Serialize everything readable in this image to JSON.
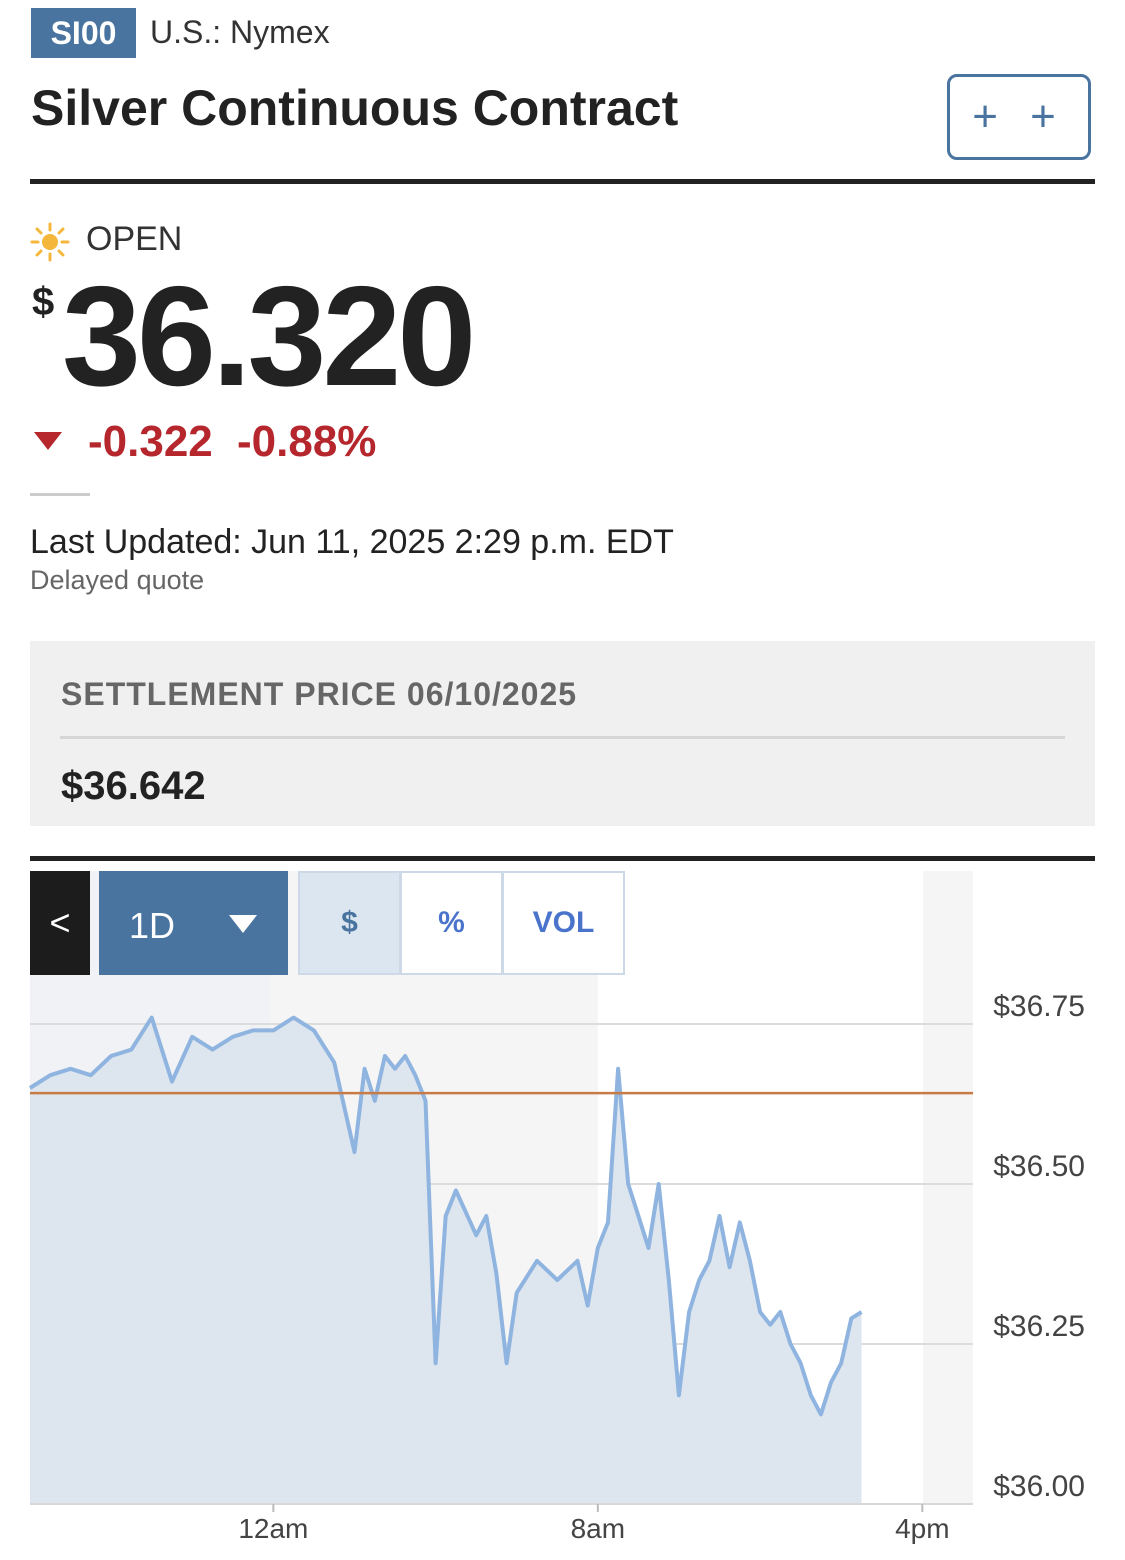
{
  "header": {
    "ticker": "SI00",
    "exchange": "U.S.: Nymex",
    "title": "Silver Continuous Contract",
    "watchlist_label": "+ +"
  },
  "quote": {
    "status": "OPEN",
    "currency_symbol": "$",
    "price": "36.320",
    "change": "-0.322",
    "change_percent": "-0.88%",
    "last_updated": "Last Updated: Jun 11, 2025 2:29 p.m. EDT",
    "delayed": "Delayed quote"
  },
  "settlement": {
    "label": "SETTLEMENT PRICE 06/10/2025",
    "value": "$36.642"
  },
  "chart_controls": {
    "back_label": "<",
    "range_label": "1D",
    "segments": [
      "$",
      "%",
      "VOL"
    ],
    "active_segment": "$"
  },
  "colors": {
    "accent": "#4a74a0",
    "down": "#b5272d",
    "line": "#8fb4e0",
    "fill": "#dde6ef",
    "reference": "#c97b45"
  },
  "chart_data": {
    "type": "area",
    "y_ticks": [
      "$36.75",
      "$36.50",
      "$36.25",
      "$36.00"
    ],
    "y_tick_values": [
      36.75,
      36.5,
      36.25,
      36.0
    ],
    "ylim": [
      36.0,
      36.75
    ],
    "x_ticks": [
      "12am",
      "8am",
      "4pm"
    ],
    "x_tick_hours": [
      0,
      8,
      16
    ],
    "xlim_hours": [
      -6,
      17.25
    ],
    "reference_line": 36.642,
    "grid": true,
    "series": [
      {
        "x_hours": [
          -6,
          -5.5,
          -5,
          -4.5,
          -4,
          -3.5,
          -3,
          -2.5,
          -2,
          -1.5,
          -1,
          -0.5,
          0,
          0.5,
          1,
          1.5,
          1.75,
          2,
          2.25,
          2.5,
          2.75,
          3,
          3.25,
          3.5,
          3.75,
          4,
          4.25,
          4.5,
          5,
          5.25,
          5.5,
          5.75,
          6,
          6.5,
          7,
          7.5,
          7.75,
          8,
          8.25,
          8.5,
          8.75,
          9,
          9.25,
          9.5,
          9.75,
          10,
          10.25,
          10.5,
          10.75,
          11,
          11.25,
          11.5,
          11.75,
          12,
          12.25,
          12.5,
          12.75,
          13,
          13.25,
          13.5,
          13.75,
          14,
          14.25,
          14.5
        ],
        "values": [
          36.65,
          36.67,
          36.68,
          36.67,
          36.7,
          36.71,
          36.76,
          36.66,
          36.73,
          36.71,
          36.73,
          36.74,
          36.74,
          36.76,
          36.74,
          36.69,
          36.62,
          36.55,
          36.68,
          36.63,
          36.7,
          36.68,
          36.7,
          36.67,
          36.63,
          36.22,
          36.45,
          36.49,
          36.42,
          36.45,
          36.36,
          36.22,
          36.33,
          36.38,
          36.35,
          36.38,
          36.31,
          36.4,
          36.44,
          36.68,
          36.5,
          36.45,
          36.4,
          36.5,
          36.35,
          36.17,
          36.3,
          36.35,
          36.38,
          36.45,
          36.37,
          36.44,
          36.38,
          36.3,
          36.28,
          36.3,
          36.25,
          36.22,
          36.17,
          36.14,
          36.19,
          36.22,
          36.29,
          36.3
        ]
      }
    ]
  }
}
